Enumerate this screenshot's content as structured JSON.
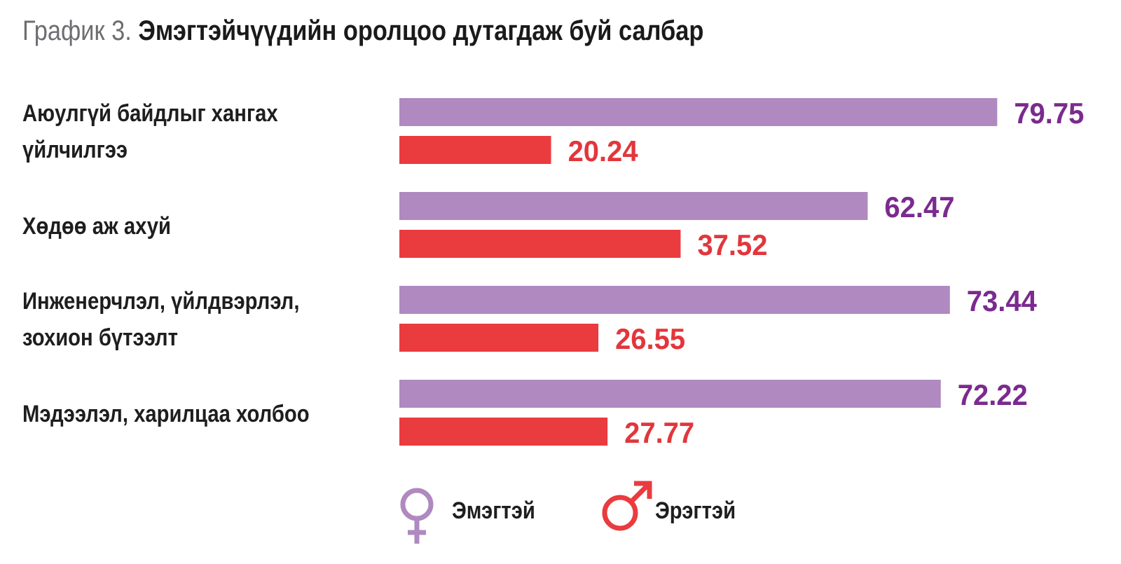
{
  "title": {
    "prefix": "График 3.",
    "main": "Эмэгтэйчүүдийн оролцоо дутагдаж буй салбар"
  },
  "colors": {
    "female": "#af89c0",
    "female_text": "#7b2a8f",
    "male": "#ea3b3f",
    "male_text": "#e2363c"
  },
  "legend": {
    "female": {
      "label": "Эмэгтэй",
      "icon": "female-symbol-icon"
    },
    "male": {
      "label": "Эрэгтэй",
      "icon": "male-symbol-icon"
    }
  },
  "chart_data": {
    "type": "bar",
    "orientation": "horizontal",
    "categories": [
      [
        "Аюулгүй байдлыг хангах",
        "үйлчилгээ"
      ],
      [
        "Хөдөө аж ахуй"
      ],
      [
        "Инженерчлэл, үйлдвэрлэл,",
        "зохион бүтээлт"
      ],
      [
        "Мэдээлэл, харилцаа холбоо"
      ]
    ],
    "series": [
      {
        "name": "Эмэгтэй",
        "values": [
          79.75,
          62.47,
          73.44,
          72.22
        ],
        "labels": [
          "79.75",
          "62.47",
          "73.44",
          "72.22"
        ]
      },
      {
        "name": "Эрэгтэй",
        "values": [
          20.24,
          37.52,
          26.55,
          27.77
        ],
        "labels": [
          "20.24",
          "37.52",
          "26.55",
          "27.77"
        ]
      }
    ],
    "xlim": [
      0,
      100
    ],
    "grid": false,
    "legend_position": "bottom"
  }
}
